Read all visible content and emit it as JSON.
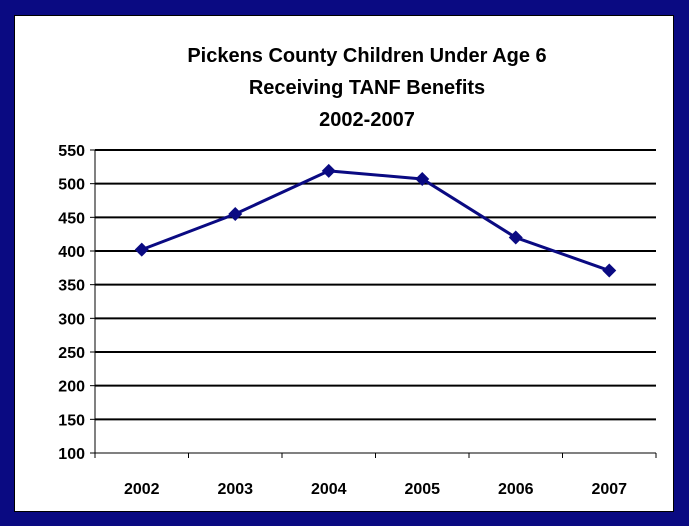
{
  "chart_data": {
    "type": "line",
    "title_lines": [
      "Pickens County Children Under Age 6",
      "Receiving TANF Benefits",
      "2002-2007"
    ],
    "xlabel": "",
    "ylabel": "",
    "categories": [
      "2002",
      "2003",
      "2004",
      "2005",
      "2006",
      "2007"
    ],
    "series": [
      {
        "values": [
          402,
          455,
          519,
          507,
          420,
          371
        ]
      }
    ],
    "ylim": [
      100,
      550
    ],
    "yticks": [
      100,
      150,
      200,
      250,
      300,
      350,
      400,
      450,
      500,
      550
    ],
    "grid": true,
    "legend": "none",
    "colors": {
      "frame": "#0a0a82",
      "line": "#0a0a82",
      "marker": "#0a0a82",
      "grid": "#000000"
    }
  }
}
